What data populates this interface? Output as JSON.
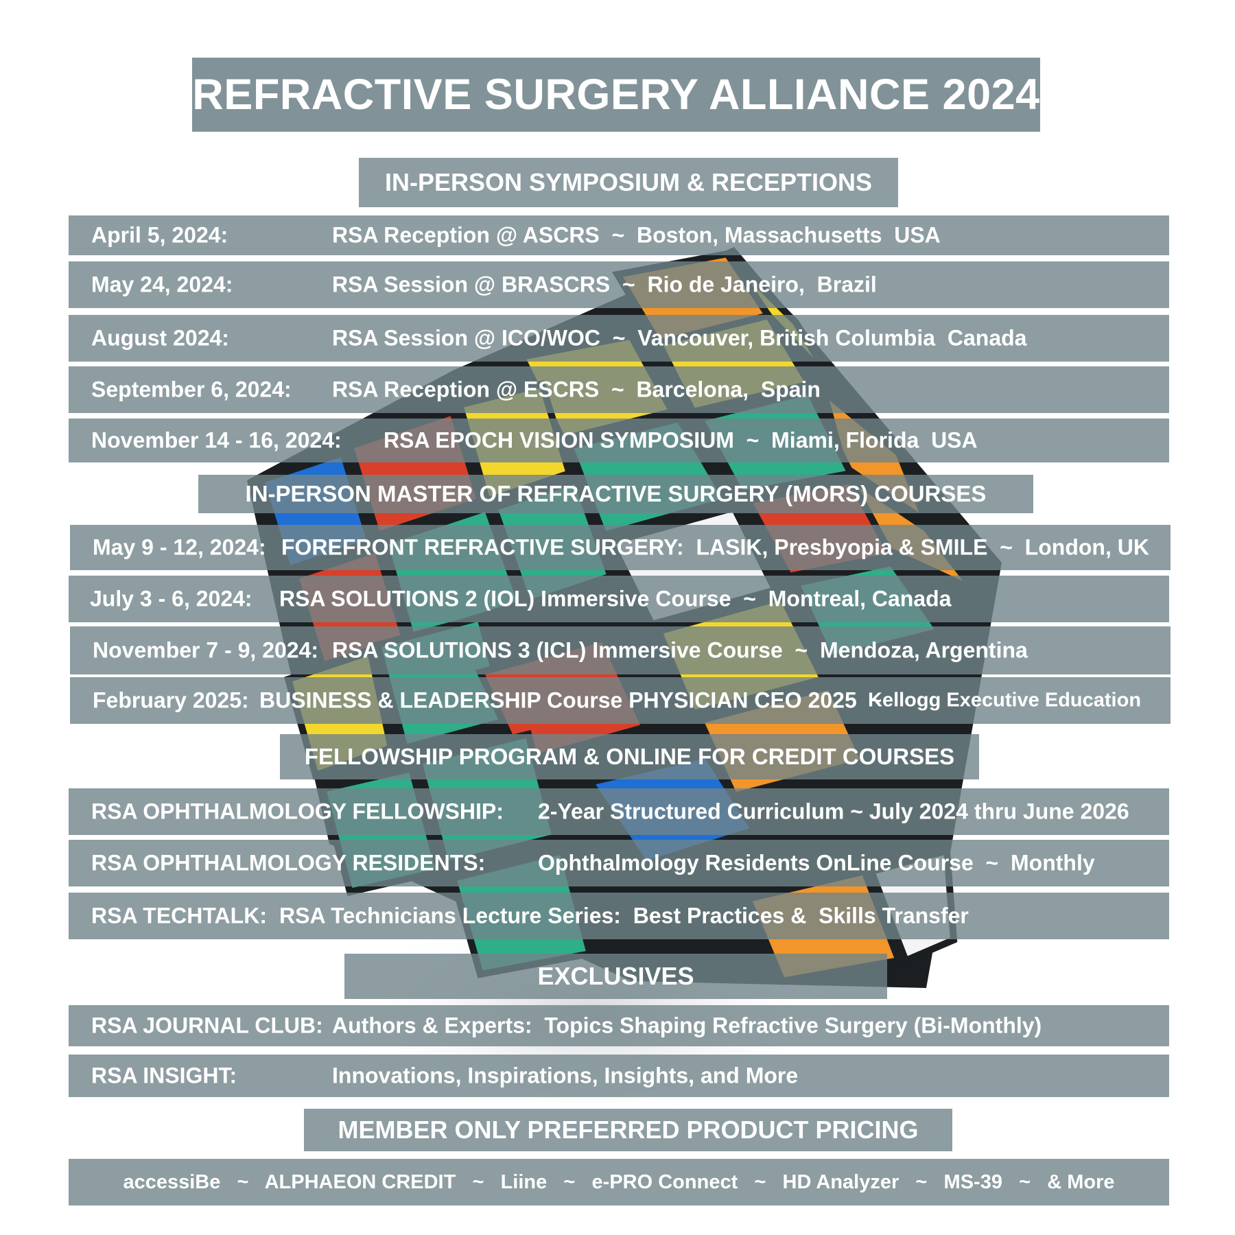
{
  "title": "REFRACTIVE SURGERY ALLIANCE 2024",
  "sections": {
    "symposium": "IN-PERSON SYMPOSIUM & RECEPTIONS",
    "mors": "IN-PERSON MASTER OF REFRACTIVE SURGERY (MORS) COURSES",
    "fellowship": "FELLOWSHIP PROGRAM & ONLINE FOR CREDIT COURSES",
    "exclusives": "EXCLUSIVES",
    "pricing": "MEMBER ONLY PREFERRED PRODUCT PRICING"
  },
  "symposium_events": [
    {
      "date": "April 5, 2024:",
      "event": "RSA Reception @ ASCRS  ~  Boston, Massachusetts  USA"
    },
    {
      "date": "May 24, 2024:",
      "event": "RSA Session @ BRASCRS  ~  Rio de Janeiro,  Brazil"
    },
    {
      "date": "August 2024:",
      "event": "RSA Session @ ICO/WOC  ~  Vancouver, British Columbia  Canada"
    },
    {
      "date": "September 6, 2024:",
      "event": "RSA Reception @ ESCRS  ~  Barcelona,  Spain"
    },
    {
      "date": "November 14 - 16, 2024:",
      "event": "RSA EPOCH VISION SYMPOSIUM  ~  Miami, Florida  USA"
    }
  ],
  "mors_courses": [
    {
      "date": "May 9 - 12, 2024:",
      "event": "FOREFRONT REFRACTIVE SURGERY:  LASIK, Presbyopia & SMILE  ~  London, UK"
    },
    {
      "date": "July 3 - 6, 2024:",
      "event": "RSA SOLUTIONS 2 (IOL) Immersive Course  ~  Montreal, Canada"
    },
    {
      "date": "November 7 - 9, 2024:",
      "event": "RSA SOLUTIONS 3 (ICL) Immersive Course  ~  Mendoza, Argentina"
    },
    {
      "date": "February 2025:",
      "event": "BUSINESS & LEADERSHIP Course PHYSICIAN CEO 2025  ~",
      "extra": "Kellogg Executive Education"
    }
  ],
  "fellowship_programs": [
    {
      "name": "RSA OPHTHALMOLOGY FELLOWSHIP:",
      "detail": "2-Year Structured Curriculum ~ July 2024 thru June 2026"
    },
    {
      "name": "RSA OPHTHALMOLOGY RESIDENTS:",
      "detail": "Ophthalmology Residents OnLine Course  ~  Monthly"
    },
    {
      "name": "RSA TECHTALK:",
      "detail": "RSA Technicians Lecture Series:  Best Practices &  Skills Transfer"
    }
  ],
  "exclusives": [
    {
      "name": "RSA JOURNAL CLUB:",
      "detail": "Authors & Experts:  Topics Shaping Refractive Surgery (Bi-Monthly)"
    },
    {
      "name": "RSA INSIGHT:",
      "detail": "Innovations, Inspirations, Insights, and More"
    }
  ],
  "sponsors": "accessiBe   ~   ALPHAEON CREDIT   ~   Liine   ~   e-PRO Connect   ~   HD Analyzer   ~   MS-39   ~   & More",
  "colors": {
    "bar": "#70858a",
    "text": "#ffffff",
    "cube_red": "#d8402a",
    "cube_orange": "#f2952a",
    "cube_yellow": "#f4d72c",
    "cube_green": "#2fae8a",
    "cube_blue": "#1f6fd4",
    "cube_white": "#f4f4f6"
  }
}
